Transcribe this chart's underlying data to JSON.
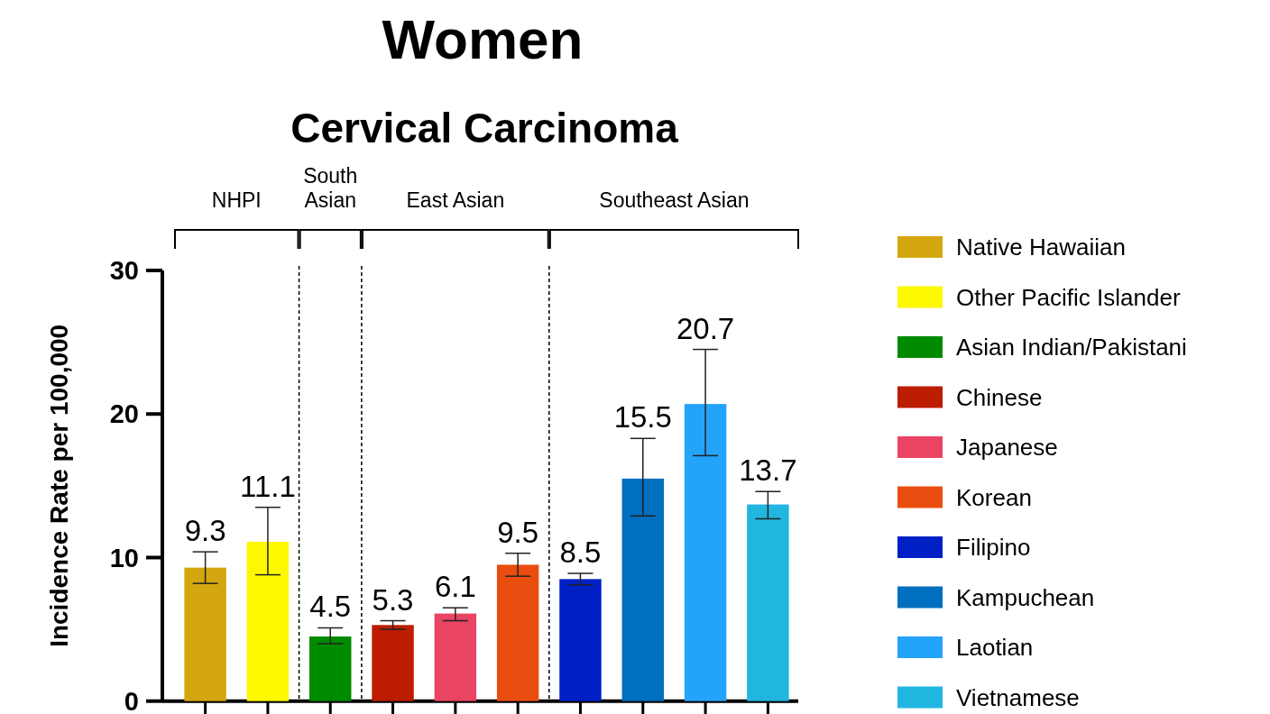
{
  "chart_data": {
    "type": "bar",
    "title": "Women",
    "subtitle": "Cervical Carcinoma",
    "ylabel": "Incidence Rate per 100,000",
    "categories": [
      null,
      null,
      null,
      null,
      null,
      null,
      null,
      null,
      null,
      null
    ],
    "series": [
      {
        "name": "Native Hawaiian",
        "color": "#d4a710",
        "values": [
          9.3,
          null,
          null,
          null,
          null,
          null,
          null,
          null,
          null,
          null
        ],
        "errors": [
          [
            8.2,
            10.4
          ],
          null,
          null,
          null,
          null,
          null,
          null,
          null,
          null,
          null
        ]
      },
      {
        "name": "Other Pacific Islander",
        "color": "#fdf700",
        "values": [
          null,
          11.1,
          null,
          null,
          null,
          null,
          null,
          null,
          null,
          null
        ],
        "errors": [
          null,
          [
            8.8,
            13.5
          ],
          null,
          null,
          null,
          null,
          null,
          null,
          null,
          null
        ]
      },
      {
        "name": "Asian Indian/Pakistani",
        "color": "#008a00",
        "values": [
          null,
          null,
          4.5,
          null,
          null,
          null,
          null,
          null,
          null,
          null
        ],
        "errors": [
          null,
          null,
          [
            4.0,
            5.1
          ],
          null,
          null,
          null,
          null,
          null,
          null,
          null
        ]
      },
      {
        "name": "Chinese",
        "color": "#bc1c00",
        "values": [
          null,
          null,
          null,
          5.3,
          null,
          null,
          null,
          null,
          null,
          null
        ],
        "errors": [
          null,
          null,
          null,
          [
            5.0,
            5.6
          ],
          null,
          null,
          null,
          null,
          null,
          null
        ]
      },
      {
        "name": "Japanese",
        "color": "#ea4463",
        "values": [
          null,
          null,
          null,
          null,
          6.1,
          null,
          null,
          null,
          null,
          null
        ],
        "errors": [
          null,
          null,
          null,
          null,
          [
            5.6,
            6.5
          ],
          null,
          null,
          null,
          null,
          null
        ]
      },
      {
        "name": "Korean",
        "color": "#e94e10",
        "values": [
          null,
          null,
          null,
          null,
          null,
          9.5,
          null,
          null,
          null,
          null
        ],
        "errors": [
          null,
          null,
          null,
          null,
          null,
          [
            8.7,
            10.3
          ],
          null,
          null,
          null,
          null
        ]
      },
      {
        "name": "Filipino",
        "color": "#0020c6",
        "values": [
          null,
          null,
          null,
          null,
          null,
          null,
          8.5,
          null,
          null,
          null
        ],
        "errors": [
          null,
          null,
          null,
          null,
          null,
          null,
          [
            8.1,
            8.9
          ],
          null,
          null,
          null
        ]
      },
      {
        "name": "Kampuchean",
        "color": "#006fc0",
        "values": [
          null,
          null,
          null,
          null,
          null,
          null,
          null,
          15.5,
          null,
          null
        ],
        "errors": [
          null,
          null,
          null,
          null,
          null,
          null,
          null,
          [
            12.9,
            18.3
          ],
          null,
          null
        ]
      },
      {
        "name": "Laotian",
        "color": "#24a3fb",
        "values": [
          null,
          null,
          null,
          null,
          null,
          null,
          null,
          null,
          20.7,
          null
        ],
        "errors": [
          null,
          null,
          null,
          null,
          null,
          null,
          null,
          null,
          [
            17.1,
            24.5
          ],
          null
        ]
      },
      {
        "name": "Vietnamese",
        "color": "#21b6e0",
        "values": [
          null,
          null,
          null,
          null,
          null,
          null,
          null,
          null,
          null,
          13.7
        ],
        "errors": [
          null,
          null,
          null,
          null,
          null,
          null,
          null,
          null,
          null,
          [
            12.7,
            14.6
          ]
        ]
      }
    ],
    "ylim": [
      0,
      30
    ],
    "yticks": [
      0,
      10,
      20,
      30
    ],
    "data_labels": true,
    "legend": "right",
    "tick_labels": "y",
    "annotations": [
      "NHPI",
      "South\nAsian",
      "East  Asian",
      "Southeast Asian"
    ]
  }
}
